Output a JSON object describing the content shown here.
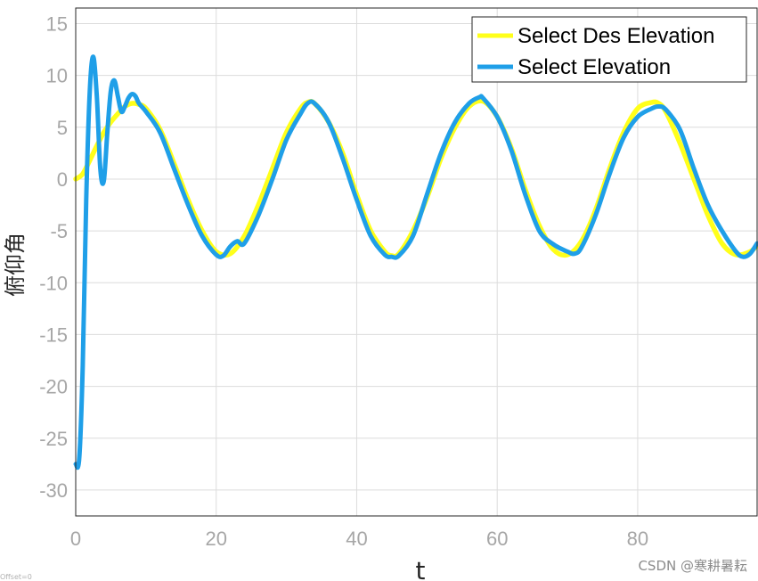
{
  "chart_data": {
    "type": "line",
    "xlabel": "t",
    "ylabel": "俯仰角",
    "xlim": [
      0,
      97
    ],
    "ylim": [
      -32.5,
      16.5
    ],
    "xticks": [
      0,
      20,
      40,
      60,
      80
    ],
    "yticks": [
      15,
      10,
      5,
      0,
      -5,
      -10,
      -15,
      -20,
      -25,
      -30
    ],
    "grid": true,
    "legend_position": "top-right",
    "series": [
      {
        "name": "Select Des Elevation",
        "color": "#ffff1a",
        "x": [
          0,
          1,
          2,
          3,
          4,
          5,
          6,
          7,
          8,
          9,
          10,
          12,
          14,
          16,
          18,
          20,
          22,
          24,
          26,
          28,
          30,
          32,
          33,
          34,
          36,
          38,
          40,
          42,
          44,
          45,
          46,
          48,
          50,
          52,
          54,
          56,
          58,
          60,
          62,
          64,
          66,
          68,
          70,
          72,
          74,
          76,
          78,
          80,
          82,
          83,
          84,
          86,
          88,
          90,
          92,
          94,
          96,
          97
        ],
        "y": [
          0,
          0.5,
          1.8,
          3.2,
          4.5,
          5.5,
          6.3,
          7.0,
          7.3,
          7.2,
          6.8,
          4.8,
          1.5,
          -2.0,
          -5.0,
          -7.0,
          -7.2,
          -5.5,
          -2.5,
          1.0,
          4.5,
          6.8,
          7.4,
          7.3,
          5.5,
          2.5,
          -1.5,
          -5.0,
          -7.0,
          -7.4,
          -7.2,
          -5.0,
          -1.8,
          2.0,
          5.0,
          7.0,
          7.5,
          6.0,
          3.0,
          -1.0,
          -4.5,
          -6.8,
          -7.3,
          -6.0,
          -3.0,
          1.0,
          4.5,
          6.8,
          7.4,
          7.3,
          6.5,
          3.5,
          0.0,
          -3.5,
          -6.2,
          -7.3,
          -7.0,
          -6.4
        ]
      },
      {
        "name": "Select Elevation",
        "color": "#1f9fe8",
        "x": [
          0,
          0.5,
          1.0,
          1.5,
          2.0,
          2.5,
          3.0,
          3.5,
          4.0,
          4.5,
          5.0,
          5.5,
          6.0,
          6.5,
          7.0,
          7.5,
          8.0,
          8.5,
          9.0,
          10,
          12,
          14,
          16,
          18,
          20,
          21,
          22,
          23,
          24,
          26,
          28,
          30,
          32,
          33,
          34,
          36,
          38,
          40,
          42,
          44,
          45,
          46,
          48,
          50,
          52,
          54,
          56,
          57.5,
          58,
          60,
          62,
          64,
          66,
          68,
          70,
          71,
          72,
          74,
          76,
          78,
          80,
          82,
          83,
          84,
          86,
          88,
          90,
          92,
          94,
          95,
          96,
          97
        ],
        "y": [
          -27.5,
          -27.0,
          -18.0,
          -2.0,
          8.5,
          11.8,
          8.0,
          1.0,
          -0.2,
          4.5,
          8.5,
          9.5,
          8.0,
          6.5,
          7.0,
          7.8,
          8.2,
          8.0,
          7.3,
          6.5,
          4.5,
          1.0,
          -2.5,
          -5.5,
          -7.3,
          -7.4,
          -6.5,
          -6.0,
          -6.2,
          -3.5,
          0.0,
          3.8,
          6.3,
          7.3,
          7.3,
          5.5,
          2.0,
          -2.0,
          -5.5,
          -7.3,
          -7.5,
          -7.4,
          -5.5,
          -1.5,
          2.5,
          5.5,
          7.3,
          7.9,
          7.8,
          6.0,
          2.8,
          -1.5,
          -5.0,
          -6.3,
          -7.0,
          -7.2,
          -6.6,
          -3.5,
          0.5,
          4.0,
          6.0,
          6.8,
          7.0,
          6.7,
          4.8,
          1.0,
          -2.5,
          -5.0,
          -7.0,
          -7.5,
          -7.2,
          -6.2
        ]
      }
    ]
  },
  "footer": {
    "corner_note": "Offset=0",
    "watermark": "CSDN @寒耕暑耘"
  }
}
